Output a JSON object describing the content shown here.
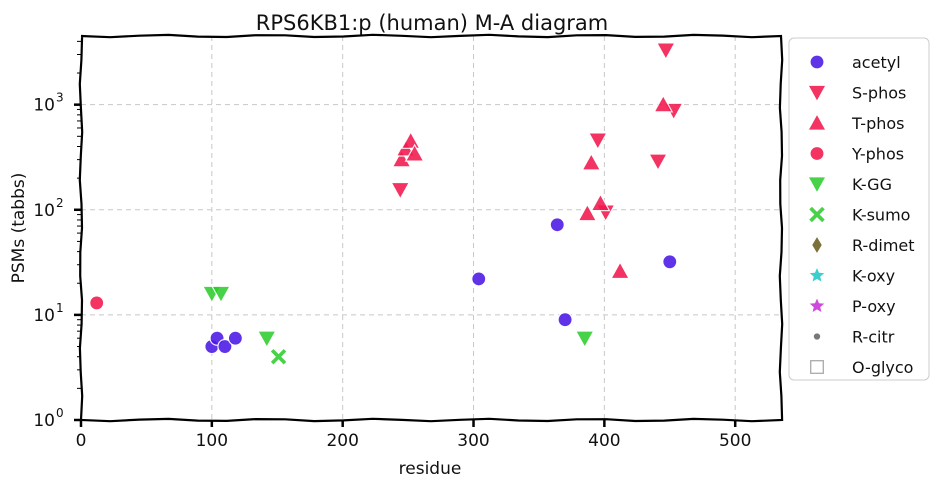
{
  "chart_data": {
    "type": "scatter",
    "title": "RPS6KB1:p (human) M-A diagram",
    "xlabel": "residue",
    "ylabel": "PSMs (tabbs)",
    "xlim": [
      0,
      535
    ],
    "ylim": [
      1,
      4500
    ],
    "yscale": "log",
    "x_ticks": [
      0,
      100,
      200,
      300,
      400,
      500
    ],
    "x_tick_labels": [
      "0",
      "100",
      "200",
      "300",
      "400",
      "500"
    ],
    "y_ticks": [
      1,
      10,
      100,
      1000
    ],
    "y_tick_labels": [
      "10",
      "10",
      "10",
      "10"
    ],
    "y_tick_exponents": [
      "0",
      "1",
      "2",
      "3"
    ],
    "grid": true,
    "legend_position": "outside-right",
    "series": [
      {
        "name": "acetyl",
        "marker": "circle",
        "color": "#4b18e6",
        "points": [
          [
            100,
            5
          ],
          [
            104,
            6
          ],
          [
            110,
            5
          ],
          [
            118,
            6
          ],
          [
            304,
            22
          ],
          [
            364,
            72
          ],
          [
            370,
            9
          ],
          [
            450,
            32
          ]
        ]
      },
      {
        "name": "S-phos",
        "marker": "triangle-down",
        "color": "#f2184d",
        "points": [
          [
            244,
            155
          ],
          [
            395,
            460
          ],
          [
            401,
            95
          ],
          [
            441,
            290
          ],
          [
            447,
            3300
          ],
          [
            453,
            880
          ]
        ]
      },
      {
        "name": "T-phos",
        "marker": "triangle-up",
        "color": "#f2184d",
        "points": [
          [
            245,
            300
          ],
          [
            248,
            380
          ],
          [
            252,
            450
          ],
          [
            255,
            340
          ],
          [
            387,
            92
          ],
          [
            390,
            280
          ],
          [
            397,
            115
          ],
          [
            412,
            26
          ],
          [
            445,
            1000
          ]
        ]
      },
      {
        "name": "Y-phos",
        "marker": "circle",
        "color": "#f2184d",
        "points": [
          [
            12,
            13
          ]
        ]
      },
      {
        "name": "K-GG",
        "marker": "triangle-down",
        "color": "#2ecc2e",
        "points": [
          [
            100,
            16
          ],
          [
            107,
            16
          ],
          [
            142,
            6
          ],
          [
            385,
            6
          ]
        ]
      },
      {
        "name": "K-sumo",
        "marker": "x",
        "color": "#2ecc2e",
        "points": [
          [
            151,
            4
          ]
        ]
      },
      {
        "name": "R-dimet",
        "marker": "diamond",
        "color": "#6b5e20",
        "points": []
      },
      {
        "name": "K-oxy",
        "marker": "star",
        "color": "#22c7c7",
        "points": []
      },
      {
        "name": "P-oxy",
        "marker": "star",
        "color": "#c733d6",
        "points": []
      },
      {
        "name": "R-citr",
        "marker": "small-circle",
        "color": "#666666",
        "points": []
      },
      {
        "name": "O-glyco",
        "marker": "square-open",
        "color": "#aaaaaa",
        "points": []
      }
    ]
  }
}
